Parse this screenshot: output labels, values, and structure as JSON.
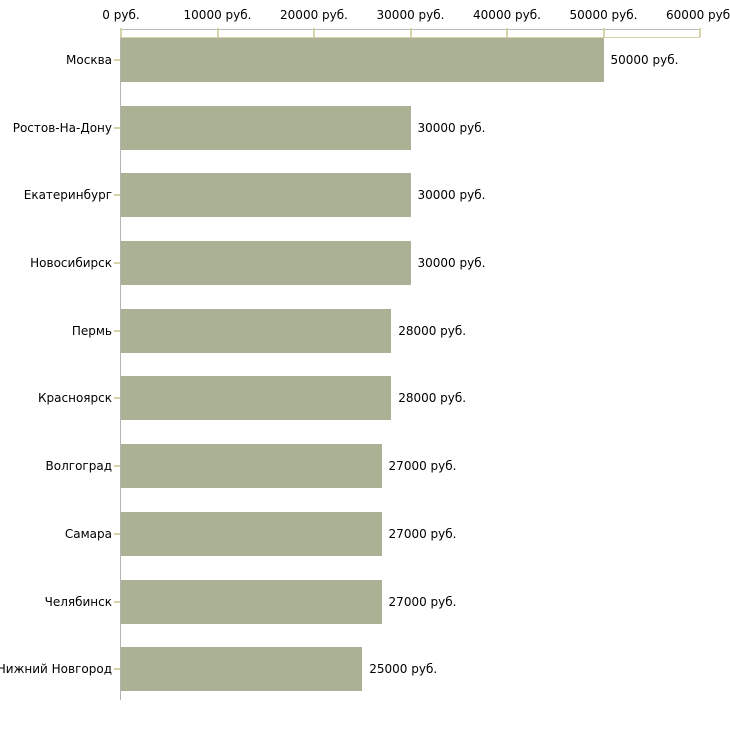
{
  "chart_data": {
    "type": "bar",
    "orientation": "horizontal",
    "title": "",
    "xlabel": "",
    "ylabel": "",
    "categories": [
      "Москва",
      "Ростов-На-Дону",
      "Екатеринбург",
      "Новосибирск",
      "Пермь",
      "Красноярск",
      "Волгоград",
      "Самара",
      "Челябинск",
      "Нижний Новгород"
    ],
    "values": [
      50000,
      30000,
      30000,
      30000,
      28000,
      28000,
      27000,
      27000,
      27000,
      25000
    ],
    "value_labels": [
      "50000 руб.",
      "30000 руб.",
      "30000 руб.",
      "30000 руб.",
      "28000 руб.",
      "28000 руб.",
      "27000 руб.",
      "27000 руб.",
      "27000 руб.",
      "25000 руб."
    ],
    "unit": "руб.",
    "xlim": [
      0,
      60000
    ],
    "x_ticks": [
      0,
      10000,
      20000,
      30000,
      40000,
      50000,
      60000
    ],
    "x_tick_labels": [
      "0 руб.",
      "10000 руб.",
      "20000 руб.",
      "30000 руб.",
      "40000 руб.",
      "50000 руб.",
      "60000 руб."
    ],
    "grid": false,
    "legend": false
  },
  "colors": {
    "bar": "#aab194",
    "axis_tick": "#d6d3a8",
    "axis_top_border": "#bcbcbc",
    "category_axis_line": "#b3b3b3",
    "text": "#000000",
    "background": "#ffffff"
  }
}
